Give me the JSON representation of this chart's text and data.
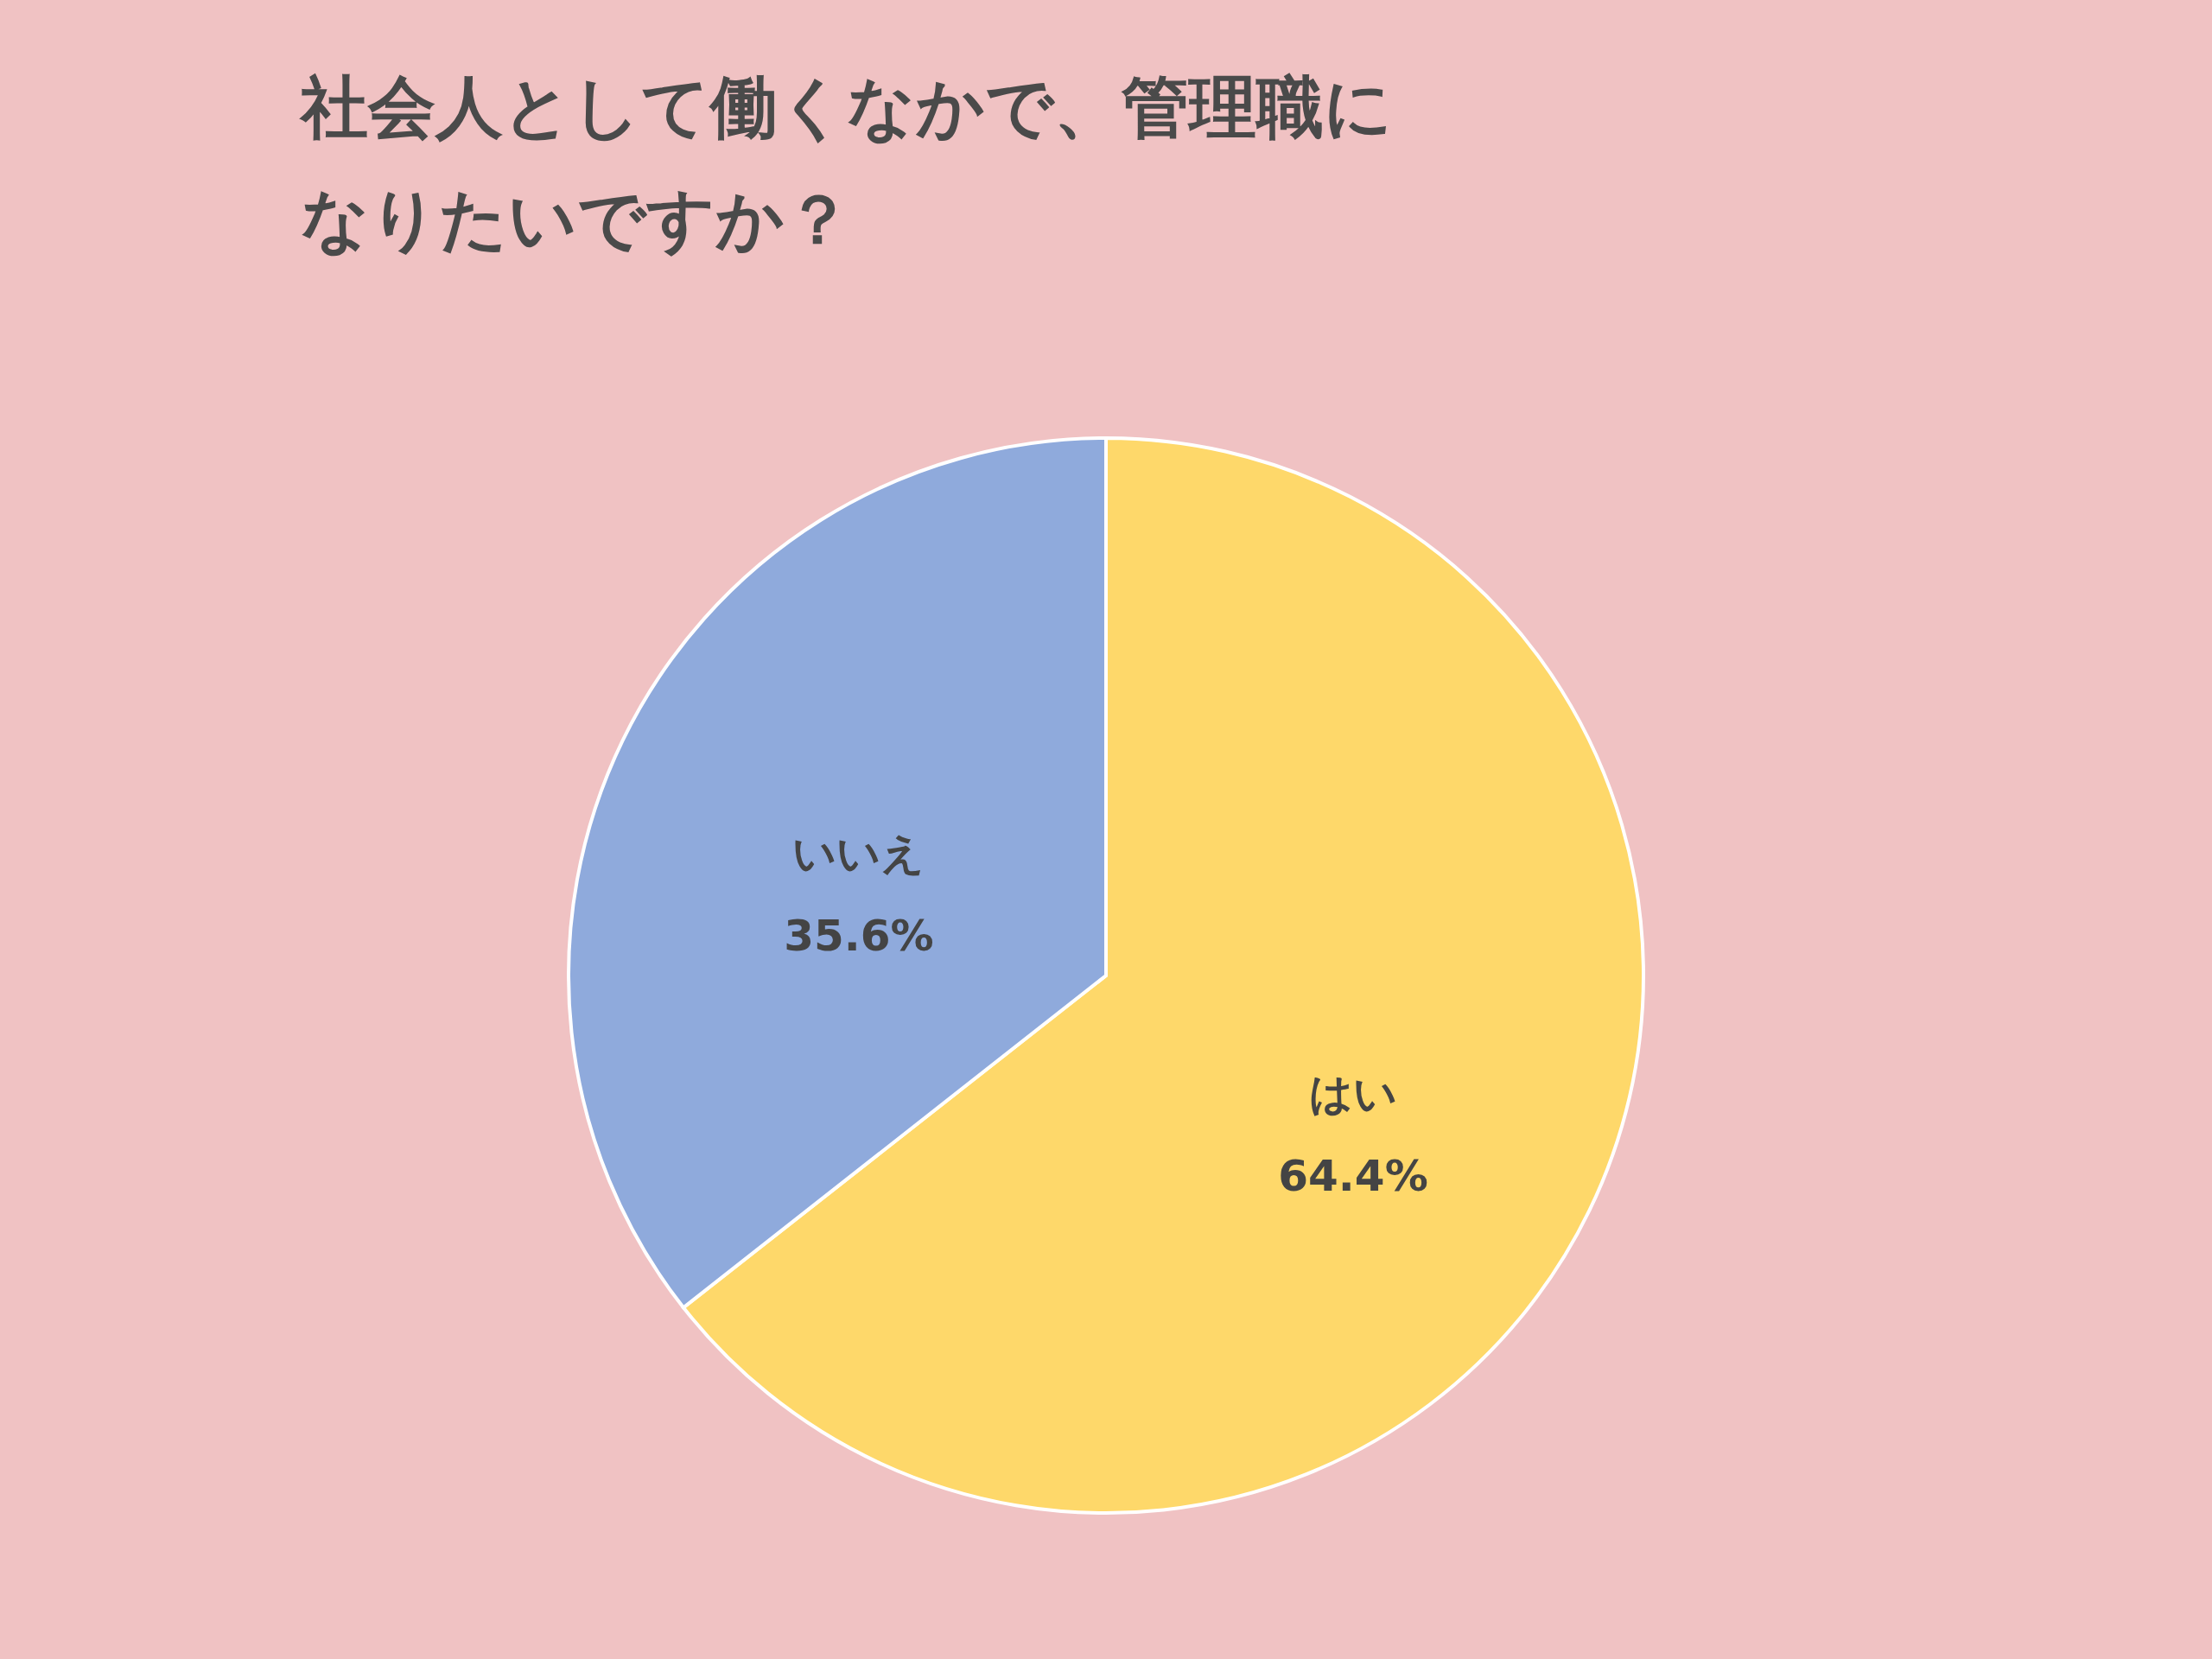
{
  "chart_data": {
    "type": "pie",
    "title": [
      "社会人として働くなかで、管理職に",
      "なりたいですか？"
    ],
    "categories": [
      "はい",
      "いいえ"
    ],
    "values": [
      64.4,
      35.6
    ],
    "colors": [
      "#fed86a",
      "#8faadc"
    ],
    "value_labels": [
      "64.4%",
      "35.6%"
    ],
    "legend": false
  }
}
